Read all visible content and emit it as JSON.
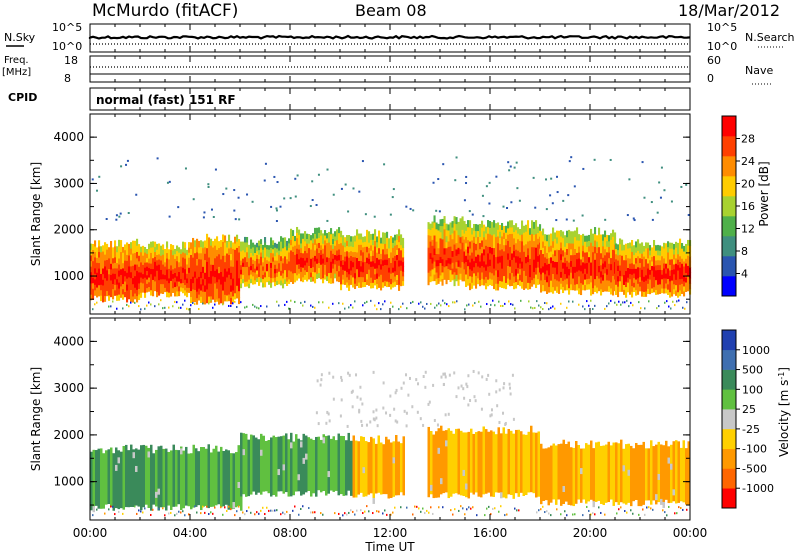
{
  "header": {
    "station": "McMurdo (fitACF)",
    "beam": "Beam 08",
    "date": "18/Mar/2012"
  },
  "top_panels": {
    "nsky_label": "N.Sky",
    "nsky_ticks": [
      "10^5",
      "10^0"
    ],
    "nsearch_label": "N.Search",
    "nsearch_ticks": [
      "10^5",
      "10^0"
    ],
    "freq_label": "Freq.",
    "freq_unit": "[MHz]",
    "freq_ticks": [
      "18",
      "8"
    ],
    "nave_label": "Nave",
    "nave_ticks": [
      "60",
      "0"
    ],
    "cpid_label": "CPID",
    "cpid_value": "normal (fast) 151 RF"
  },
  "time_axis": {
    "label": "Time UT",
    "ticks": [
      "00:00",
      "04:00",
      "08:00",
      "12:00",
      "16:00",
      "20:00",
      "00:00"
    ]
  },
  "colors": {
    "power": [
      "#0000ff",
      "#2a55b0",
      "#3f8f7f",
      "#4fb04a",
      "#a8d230",
      "#ffcc00",
      "#ff8c00",
      "#ff4000",
      "#ff0000"
    ],
    "velocity": [
      "#2040b0",
      "#3f6fb0",
      "#3a8a5a",
      "#60c040",
      "#c8c8c8",
      "#ffd000",
      "#ff9900",
      "#ff6600",
      "#ff0000"
    ]
  },
  "chart_data": [
    {
      "type": "heatmap",
      "title": "",
      "xlabel": "",
      "ylabel": "Slant Range [km]",
      "xlim": [
        0,
        24
      ],
      "ylim": [
        180,
        4500
      ],
      "yticks": [
        "1000",
        "2000",
        "3000",
        "4000"
      ],
      "colorbar": {
        "label": "Power [dB]",
        "ticks": [
          "4",
          "8",
          "12",
          "16",
          "20",
          "24",
          "28"
        ],
        "range": [
          0,
          32
        ]
      },
      "bands": [
        {
          "x": [
            0.0,
            2.0
          ],
          "y": [
            500,
            1700
          ],
          "value_range": [
            18,
            30
          ]
        },
        {
          "x": [
            2.0,
            4.0
          ],
          "y": [
            600,
            1650
          ],
          "value_range": [
            16,
            30
          ]
        },
        {
          "x": [
            4.0,
            6.0
          ],
          "y": [
            450,
            1800
          ],
          "value_range": [
            18,
            30
          ]
        },
        {
          "x": [
            6.0,
            8.0
          ],
          "y": [
            800,
            1750
          ],
          "value_range": [
            10,
            28
          ]
        },
        {
          "x": [
            8.0,
            10.0
          ],
          "y": [
            900,
            1950
          ],
          "value_range": [
            12,
            30
          ]
        },
        {
          "x": [
            10.0,
            12.5
          ],
          "y": [
            750,
            1900
          ],
          "value_range": [
            14,
            30
          ]
        },
        {
          "x": [
            13.5,
            15.0
          ],
          "y": [
            850,
            2200
          ],
          "value_range": [
            12,
            30
          ]
        },
        {
          "x": [
            15.0,
            18.0
          ],
          "y": [
            750,
            2100
          ],
          "value_range": [
            14,
            30
          ]
        },
        {
          "x": [
            18.0,
            21.0
          ],
          "y": [
            650,
            1950
          ],
          "value_range": [
            14,
            30
          ]
        },
        {
          "x": [
            21.0,
            24.0
          ],
          "y": [
            600,
            1700
          ],
          "value_range": [
            14,
            30
          ]
        }
      ]
    },
    {
      "type": "heatmap",
      "title": "",
      "xlabel": "Time UT",
      "ylabel": "Slant Range [km]",
      "xlim": [
        0,
        24
      ],
      "ylim": [
        180,
        4500
      ],
      "yticks": [
        "1000",
        "2000",
        "3000",
        "4000"
      ],
      "colorbar": {
        "label": "Velocity [m s^-1]",
        "ticks": [
          "1000",
          "500",
          "100",
          "25",
          "-25",
          "-100",
          "-500",
          "-1000"
        ]
      },
      "bands": [
        {
          "x": [
            0.0,
            6.0
          ],
          "y": [
            450,
            1700
          ],
          "velocity": 100
        },
        {
          "x": [
            6.0,
            10.5
          ],
          "y": [
            750,
            1950
          ],
          "velocity": 100
        },
        {
          "x": [
            10.5,
            12.5
          ],
          "y": [
            700,
            1900
          ],
          "velocity": -100
        },
        {
          "x": [
            13.5,
            18.0
          ],
          "y": [
            700,
            2100
          ],
          "velocity": -100
        },
        {
          "x": [
            18.0,
            24.0
          ],
          "y": [
            550,
            1800
          ],
          "velocity": -100
        }
      ]
    }
  ]
}
